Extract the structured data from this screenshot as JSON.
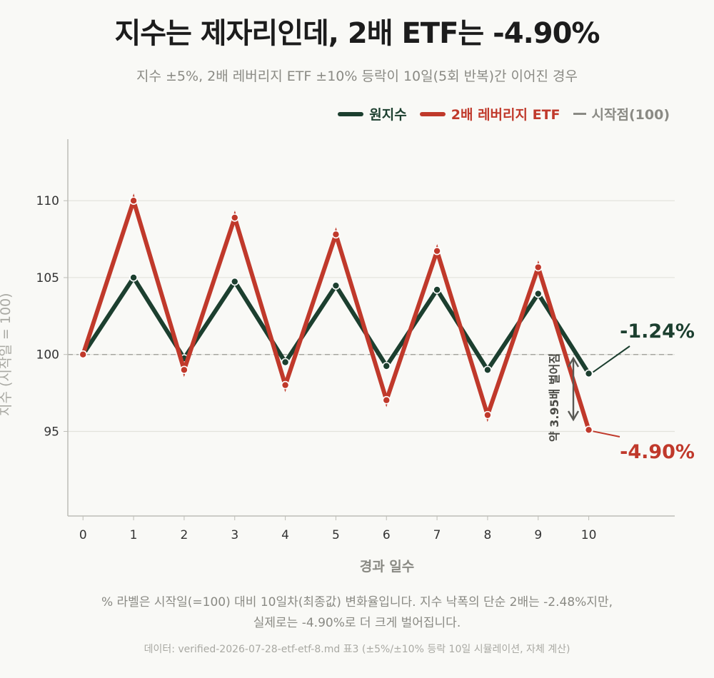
{
  "title": "지수는 제자리인데, 2배 ETF는 -4.90%",
  "subtitle": "지수 ±5%, 2배 레버리지 ETF ±10% 등락이 10일(5회 반복)간 이어진 경우",
  "legend": [
    {
      "label": "원지수",
      "color": "#1c3f2f"
    },
    {
      "label": "2배 레버리지 ETF",
      "color": "#c0392b"
    },
    {
      "label": "시작점(100)",
      "color": "#8a8a84"
    }
  ],
  "chart_data": {
    "type": "line",
    "xlabel": "경과 일수",
    "ylabel": "지수 (시작일 = 100)",
    "x": [
      0,
      1,
      2,
      3,
      4,
      5,
      6,
      7,
      8,
      9,
      10
    ],
    "xlim": [
      -0.3,
      11.7
    ],
    "ylim": [
      89.5,
      114
    ],
    "yticks": [
      95,
      100,
      105,
      110
    ],
    "grid": "horizontal",
    "legend_position": "top-right",
    "baseline": 100,
    "series": [
      {
        "name": "원지수",
        "color": "#1c3f2f",
        "values": [
          100,
          105,
          99.75,
          104.74,
          99.5,
          104.48,
          99.25,
          104.21,
          99.0,
          103.95,
          98.76
        ]
      },
      {
        "name": "2배 레버리지 ETF",
        "color": "#c0392b",
        "values": [
          100,
          110,
          99,
          108.9,
          98.01,
          107.81,
          97.03,
          106.73,
          96.06,
          105.67,
          95.1
        ]
      }
    ],
    "annotations": {
      "index_change": "-1.24%",
      "etf_change": "-4.90%",
      "gap": "약 3.95배 벌어짐"
    }
  },
  "note_line1": "% 라벨은 시작일(=100) 대비 10일차(최종값) 변화율입니다. 지수 낙폭의 단순 2배는 -2.48%지만,",
  "note_line2": "실제로는 -4.90%로 더 크게 벌어집니다.",
  "source": "데이터: verified-2026-07-28-etf-etf-8.md 표3 (±5%/±10% 등락 10일 시뮬레이션, 자체 계산)"
}
